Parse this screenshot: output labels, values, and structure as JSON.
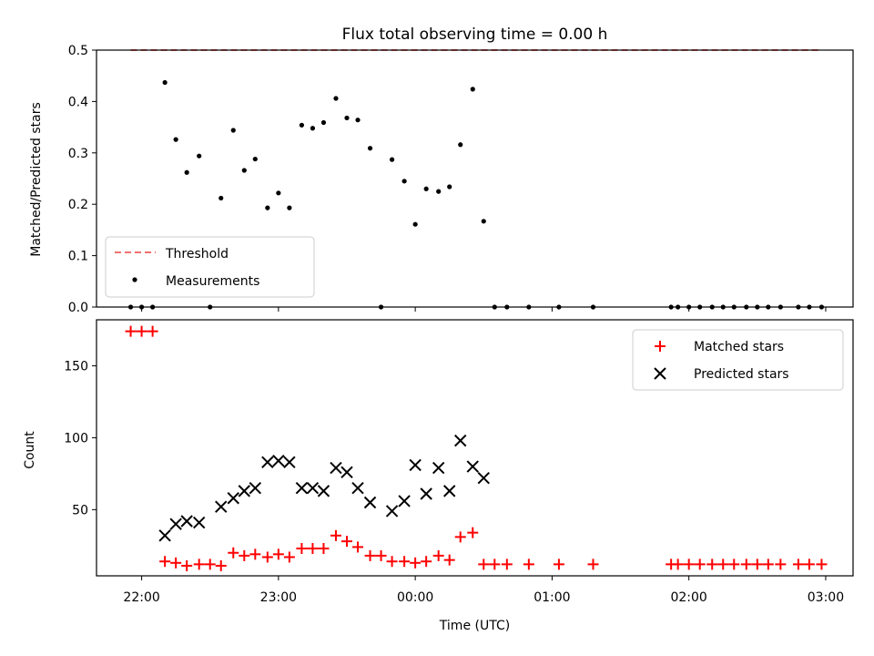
{
  "chart_data": [
    {
      "type": "scatter",
      "title": "Flux total observing time = 0.00 h",
      "xlabel": "",
      "ylabel": "Matched/Predicted stars",
      "x_units": "hours_since_22:00_UTC",
      "xlim": [
        -0.33,
        5.2
      ],
      "ylim": [
        0,
        0.5
      ],
      "y_ticks": [
        "0.0",
        "0.1",
        "0.2",
        "0.3",
        "0.4",
        "0.5"
      ],
      "legend_position": "lower-left",
      "threshold": {
        "name": "Threshold",
        "value": 0.5,
        "x_range": [
          -0.08,
          4.97
        ],
        "color": "#f07070"
      },
      "series": [
        {
          "name": "Measurements",
          "color": "#000000",
          "points": [
            [
              -0.08,
              0.0
            ],
            [
              0.0,
              0.0
            ],
            [
              0.08,
              0.0
            ],
            [
              0.17,
              0.437
            ],
            [
              0.25,
              0.326
            ],
            [
              0.33,
              0.262
            ],
            [
              0.42,
              0.294
            ],
            [
              0.5,
              0.0
            ],
            [
              0.58,
              0.212
            ],
            [
              0.67,
              0.344
            ],
            [
              0.75,
              0.266
            ],
            [
              0.83,
              0.288
            ],
            [
              0.92,
              0.193
            ],
            [
              1.0,
              0.222
            ],
            [
              1.08,
              0.193
            ],
            [
              1.17,
              0.354
            ],
            [
              1.25,
              0.348
            ],
            [
              1.33,
              0.359
            ],
            [
              1.42,
              0.406
            ],
            [
              1.5,
              0.368
            ],
            [
              1.58,
              0.364
            ],
            [
              1.67,
              0.309
            ],
            [
              1.75,
              0.0
            ],
            [
              1.83,
              0.287
            ],
            [
              1.92,
              0.245
            ],
            [
              2.0,
              0.161
            ],
            [
              2.08,
              0.23
            ],
            [
              2.17,
              0.225
            ],
            [
              2.25,
              0.234
            ],
            [
              2.33,
              0.316
            ],
            [
              2.42,
              0.424
            ],
            [
              2.5,
              0.167
            ],
            [
              2.58,
              0.0
            ],
            [
              2.67,
              0.0
            ],
            [
              2.83,
              0.0
            ],
            [
              3.05,
              0.0
            ],
            [
              3.3,
              0.0
            ],
            [
              3.87,
              0.0
            ],
            [
              3.92,
              0.0
            ],
            [
              4.0,
              0.0
            ],
            [
              4.08,
              0.0
            ],
            [
              4.17,
              0.0
            ],
            [
              4.25,
              0.0
            ],
            [
              4.33,
              0.0
            ],
            [
              4.42,
              0.0
            ],
            [
              4.5,
              0.0
            ],
            [
              4.58,
              0.0
            ],
            [
              4.67,
              0.0
            ],
            [
              4.8,
              0.0
            ],
            [
              4.88,
              0.0
            ],
            [
              4.97,
              0.0
            ]
          ]
        }
      ]
    },
    {
      "type": "scatter",
      "title": "",
      "xlabel": "Time (UTC)",
      "ylabel": "Count",
      "x_units": "hours_since_22:00_UTC",
      "xlim": [
        -0.33,
        5.2
      ],
      "ylim": [
        4,
        182
      ],
      "x_ticks": [
        {
          "value": 0,
          "label": "22:00"
        },
        {
          "value": 1,
          "label": "23:00"
        },
        {
          "value": 2,
          "label": "00:00"
        },
        {
          "value": 3,
          "label": "01:00"
        },
        {
          "value": 4,
          "label": "02:00"
        },
        {
          "value": 5,
          "label": "03:00"
        }
      ],
      "y_ticks": [
        50,
        100,
        150
      ],
      "legend_position": "upper-right",
      "series": [
        {
          "name": "Matched stars",
          "color": "#ff0000",
          "marker": "plus",
          "points": [
            [
              -0.08,
              174
            ],
            [
              0.0,
              174
            ],
            [
              0.08,
              174
            ],
            [
              0.17,
              14
            ],
            [
              0.25,
              13
            ],
            [
              0.33,
              11
            ],
            [
              0.42,
              12
            ],
            [
              0.5,
              12
            ],
            [
              0.58,
              11
            ],
            [
              0.67,
              20
            ],
            [
              0.75,
              18
            ],
            [
              0.83,
              19
            ],
            [
              0.92,
              17
            ],
            [
              1.0,
              19
            ],
            [
              1.08,
              17
            ],
            [
              1.17,
              23
            ],
            [
              1.25,
              23
            ],
            [
              1.33,
              23
            ],
            [
              1.42,
              32
            ],
            [
              1.5,
              28
            ],
            [
              1.58,
              24
            ],
            [
              1.67,
              18
            ],
            [
              1.75,
              18
            ],
            [
              1.83,
              14
            ],
            [
              1.92,
              14
            ],
            [
              2.0,
              13
            ],
            [
              2.08,
              14
            ],
            [
              2.17,
              18
            ],
            [
              2.25,
              15
            ],
            [
              2.33,
              31
            ],
            [
              2.42,
              34
            ],
            [
              2.5,
              12
            ],
            [
              2.58,
              12
            ],
            [
              2.67,
              12
            ],
            [
              2.83,
              12
            ],
            [
              3.05,
              12
            ],
            [
              3.3,
              12
            ],
            [
              3.87,
              12
            ],
            [
              3.92,
              12
            ],
            [
              4.0,
              12
            ],
            [
              4.08,
              12
            ],
            [
              4.17,
              12
            ],
            [
              4.25,
              12
            ],
            [
              4.33,
              12
            ],
            [
              4.42,
              12
            ],
            [
              4.5,
              12
            ],
            [
              4.58,
              12
            ],
            [
              4.67,
              12
            ],
            [
              4.8,
              12
            ],
            [
              4.88,
              12
            ],
            [
              4.97,
              12
            ]
          ]
        },
        {
          "name": "Predicted stars",
          "color": "#000000",
          "marker": "x",
          "points": [
            [
              0.17,
              32
            ],
            [
              0.25,
              40
            ],
            [
              0.33,
              42
            ],
            [
              0.42,
              41
            ],
            [
              0.58,
              52
            ],
            [
              0.67,
              58
            ],
            [
              0.75,
              63
            ],
            [
              0.83,
              65
            ],
            [
              0.92,
              83
            ],
            [
              1.0,
              84
            ],
            [
              1.08,
              83
            ],
            [
              1.17,
              65
            ],
            [
              1.25,
              65
            ],
            [
              1.33,
              63
            ],
            [
              1.42,
              79
            ],
            [
              1.5,
              76
            ],
            [
              1.58,
              65
            ],
            [
              1.67,
              55
            ],
            [
              1.83,
              49
            ],
            [
              1.92,
              56
            ],
            [
              2.0,
              81
            ],
            [
              2.08,
              61
            ],
            [
              2.17,
              79
            ],
            [
              2.25,
              63
            ],
            [
              2.33,
              98
            ],
            [
              2.42,
              80
            ],
            [
              2.5,
              72
            ]
          ]
        }
      ]
    }
  ]
}
